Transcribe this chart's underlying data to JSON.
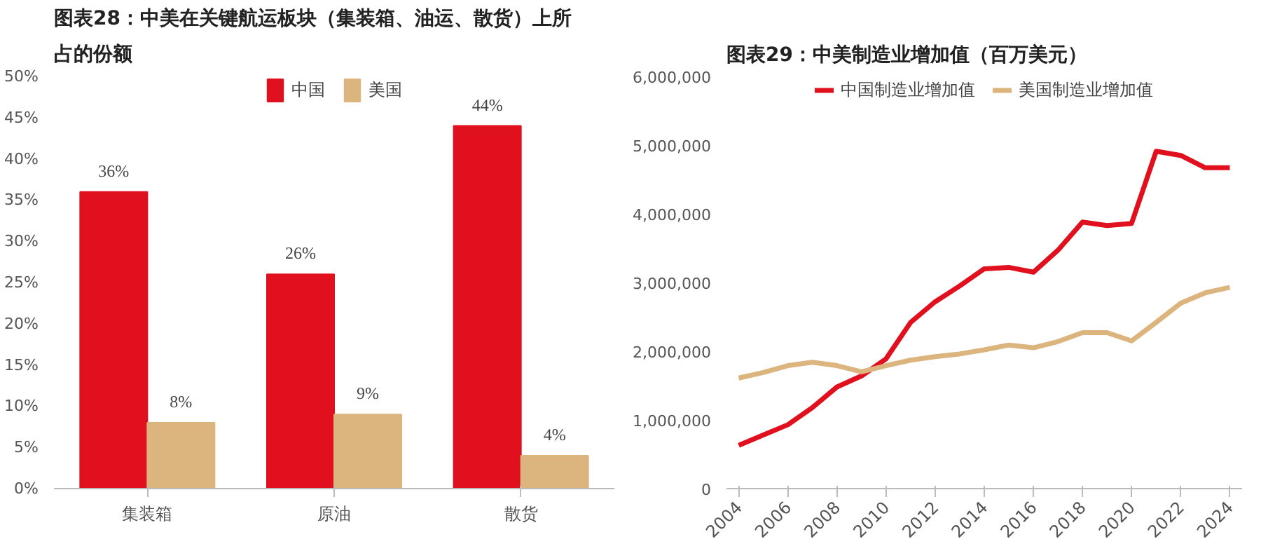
{
  "chart_data": [
    {
      "type": "bar",
      "title": "图表28：中美在关键航运板块（集装箱、油运、散货）上所占的份额",
      "categories": [
        "集装箱",
        "原油",
        "散货"
      ],
      "series": [
        {
          "name": "中国",
          "color": "#e0101e",
          "values": [
            36,
            26,
            44
          ],
          "value_labels": [
            "36%",
            "26%",
            "44%"
          ]
        },
        {
          "name": "美国",
          "color": "#dcb47e",
          "values": [
            8,
            9,
            4
          ],
          "value_labels": [
            "8%",
            "9%",
            "4%"
          ]
        }
      ],
      "ylim": [
        0,
        50
      ],
      "yticks": [
        {
          "value": 0,
          "label": "0%"
        },
        {
          "value": 5,
          "label": "5%"
        },
        {
          "value": 10,
          "label": "10%"
        },
        {
          "value": 15,
          "label": "15%"
        },
        {
          "value": 20,
          "label": "20%"
        },
        {
          "value": 25,
          "label": "25%"
        },
        {
          "value": 30,
          "label": "30%"
        },
        {
          "value": 35,
          "label": "35%"
        },
        {
          "value": 40,
          "label": "40%"
        },
        {
          "value": 45,
          "label": "45%"
        },
        {
          "value": 50,
          "label": "50%"
        }
      ],
      "grid": false,
      "legend": "top"
    },
    {
      "type": "line",
      "title": "图表29：中美制造业增加值（百万美元）",
      "x": [
        2004,
        2005,
        2006,
        2007,
        2008,
        2009,
        2010,
        2011,
        2012,
        2013,
        2014,
        2015,
        2016,
        2017,
        2018,
        2019,
        2020,
        2021,
        2022,
        2023,
        2024
      ],
      "series": [
        {
          "name": "中国制造业增加值",
          "color": "#e0101e",
          "values": [
            630000,
            780000,
            930000,
            1180000,
            1480000,
            1640000,
            1890000,
            2420000,
            2720000,
            2950000,
            3200000,
            3220000,
            3150000,
            3470000,
            3880000,
            3830000,
            3860000,
            4910000,
            4850000,
            4670000,
            4670000
          ]
        },
        {
          "name": "美国制造业增加值",
          "color": "#dcb47e",
          "values": [
            1610000,
            1690000,
            1790000,
            1840000,
            1790000,
            1700000,
            1790000,
            1870000,
            1920000,
            1960000,
            2020000,
            2090000,
            2050000,
            2140000,
            2270000,
            2270000,
            2150000,
            2420000,
            2700000,
            2850000,
            2930000
          ]
        }
      ],
      "xlim": [
        2003.5,
        2024.5
      ],
      "xticks": [
        2004,
        2006,
        2008,
        2010,
        2012,
        2014,
        2016,
        2018,
        2020,
        2022,
        2024
      ],
      "ylim": [
        0,
        6000000
      ],
      "yticks": [
        {
          "value": 0,
          "label": "0"
        },
        {
          "value": 1000000,
          "label": "1,000,000"
        },
        {
          "value": 2000000,
          "label": "2,000,000"
        },
        {
          "value": 3000000,
          "label": "3,000,000"
        },
        {
          "value": 4000000,
          "label": "4,000,000"
        },
        {
          "value": 5000000,
          "label": "5,000,000"
        },
        {
          "value": 6000000,
          "label": "6,000,000"
        }
      ],
      "grid": false,
      "legend": "top",
      "line_style": "solid",
      "marker": "none"
    }
  ]
}
